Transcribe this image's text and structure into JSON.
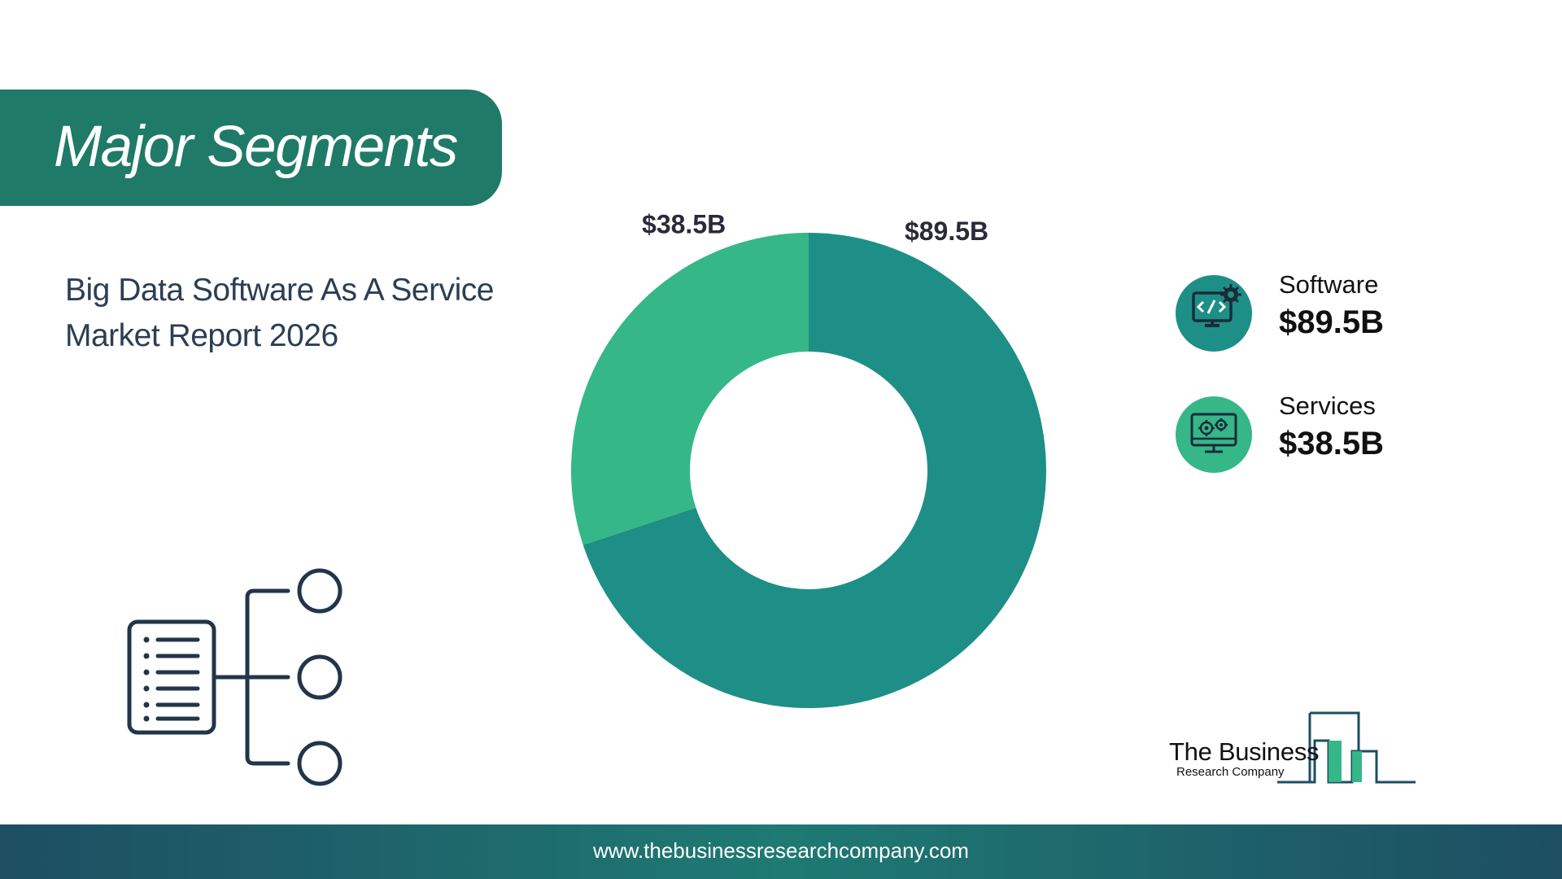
{
  "header": {
    "title": "Major Segments"
  },
  "report": {
    "title_line1": "Big Data Software As A Service",
    "title_line2": "Market Report 2026"
  },
  "chart_data": {
    "type": "pie",
    "variant": "donut",
    "categories": [
      "Software",
      "Services"
    ],
    "values": [
      89.5,
      38.5
    ],
    "labels": [
      "$89.5B",
      "$38.5B"
    ],
    "colors": [
      "#1e8f86",
      "#35b787"
    ],
    "legend_position": "right"
  },
  "legend": {
    "items": [
      {
        "name": "Software",
        "value": "$89.5B",
        "icon": "code-monitor-icon",
        "color": "#1e8f86"
      },
      {
        "name": "Services",
        "value": "$38.5B",
        "icon": "gear-monitor-icon",
        "color": "#35b787"
      }
    ]
  },
  "logo": {
    "line1": "The Business",
    "line2": "Research Company"
  },
  "footer": {
    "url": "www.thebusinessresearchcompany.com"
  }
}
